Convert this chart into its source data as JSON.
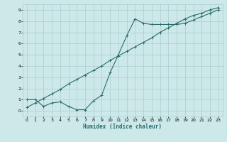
{
  "xlabel": "Humidex (Indice chaleur)",
  "background_color": "#cde8e8",
  "grid_color": "#aacece",
  "line_color": "#2a6b6b",
  "xlim": [
    -0.5,
    23.5
  ],
  "ylim": [
    -0.5,
    9.5
  ],
  "xticks": [
    0,
    1,
    2,
    3,
    4,
    5,
    6,
    7,
    8,
    9,
    10,
    11,
    12,
    13,
    14,
    15,
    16,
    17,
    18,
    19,
    20,
    21,
    22,
    23
  ],
  "yticks": [
    0,
    1,
    2,
    3,
    4,
    5,
    6,
    7,
    8,
    9
  ],
  "curve1_x": [
    0,
    1,
    2,
    3,
    4,
    5,
    6,
    7,
    8,
    9,
    10,
    11,
    12,
    13,
    14,
    15,
    16,
    17,
    18,
    19,
    20,
    21,
    22,
    23
  ],
  "curve1_y": [
    1.0,
    1.0,
    0.4,
    0.7,
    0.8,
    0.4,
    0.1,
    0.1,
    0.9,
    1.4,
    3.4,
    5.0,
    6.7,
    8.2,
    7.8,
    7.7,
    7.7,
    7.7,
    7.7,
    7.8,
    8.1,
    8.4,
    8.7,
    9.0
  ],
  "curve2_x": [
    0,
    1,
    2,
    3,
    4,
    5,
    6,
    7,
    8,
    9,
    10,
    11,
    12,
    13,
    14,
    15,
    16,
    17,
    18,
    19,
    20,
    21,
    22,
    23
  ],
  "curve2_y": [
    0.3,
    0.7,
    1.1,
    1.5,
    1.9,
    2.4,
    2.8,
    3.2,
    3.6,
    4.0,
    4.5,
    4.9,
    5.3,
    5.7,
    6.1,
    6.5,
    7.0,
    7.4,
    7.8,
    8.2,
    8.5,
    8.7,
    9.0,
    9.2
  ],
  "marker_size": 3,
  "linewidth": 0.8
}
